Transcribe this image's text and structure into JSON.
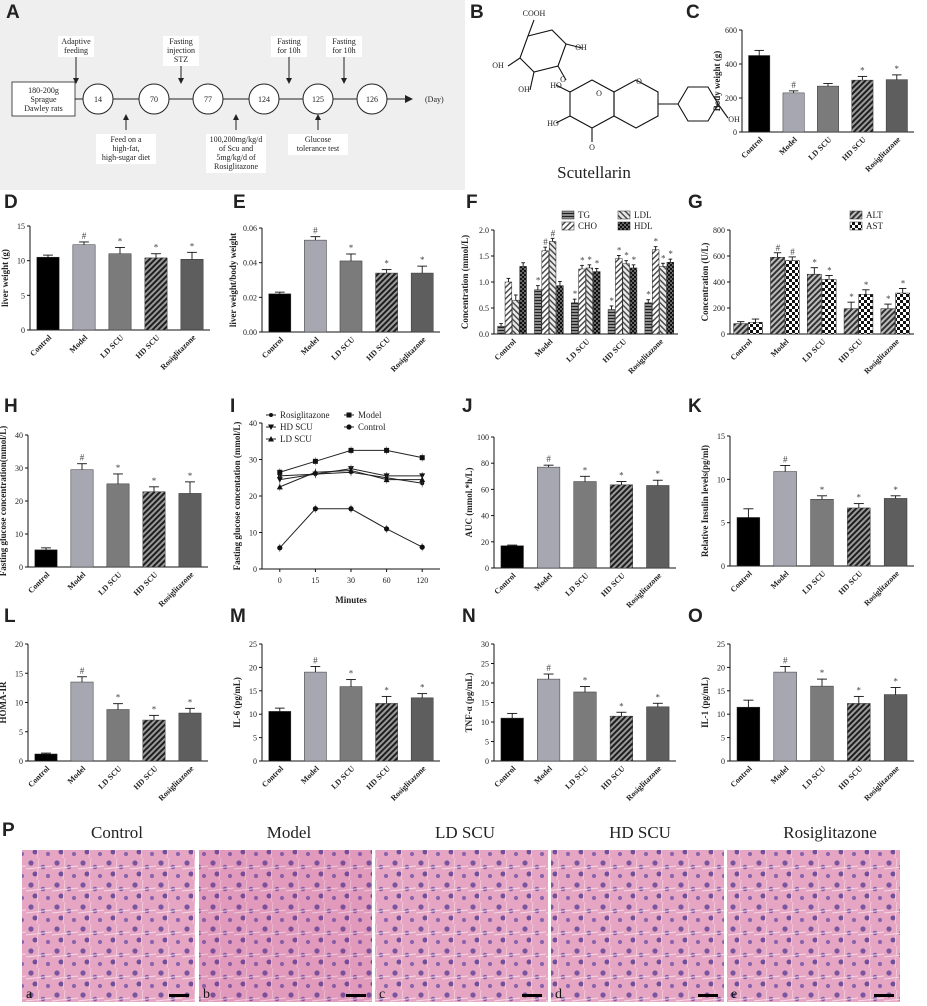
{
  "panel_letters": [
    "A",
    "B",
    "C",
    "D",
    "E",
    "F",
    "G",
    "H",
    "I",
    "J",
    "K",
    "L",
    "M",
    "N",
    "O",
    "P"
  ],
  "timeline": {
    "start_box": "180-200g Sprague Dawley rats",
    "days": [
      "14",
      "70",
      "77",
      "124",
      "125",
      "126"
    ],
    "unit": "(Day)",
    "top_notes": [
      "Adaptive feeding",
      "Fasting injection STZ",
      "Fasting for 10h",
      "Fasting for 10h"
    ],
    "bottom_notes": [
      "Feed on a high-fat, high-sugar diet",
      "100,200mg/kg/d of Scu and 5mg/kg/d of Rosiglitazone",
      "Glucose tolerance test"
    ]
  },
  "molecule": {
    "name": "Scutellarin",
    "atom_labels": [
      "COOH",
      "OH",
      "OH",
      "OH",
      "HO",
      "HO",
      "OH",
      "O",
      "O",
      "O",
      "O"
    ]
  },
  "groups": [
    "Control",
    "Model",
    "LD SCU",
    "HD SCU",
    "Rosiglitazone"
  ],
  "markers": {
    "hash": "#",
    "star": "*"
  },
  "colors": {
    "control": "#000000",
    "model": "#a7a7b1",
    "ld": "#7b7b7b",
    "hd": "#3f3f3f",
    "rosi": "#5e5e5e",
    "bg_panelA": "#efefef"
  },
  "chart_data": [
    {
      "panel": "C",
      "type": "bar",
      "ylabel": "Body weight (g)",
      "categories": [
        "Control",
        "Model",
        "LD SCU",
        "HD SCU",
        "Rosiglitazone"
      ],
      "values": [
        450,
        230,
        270,
        305,
        308
      ],
      "errors": [
        30,
        12,
        15,
        22,
        28
      ],
      "ylim": [
        0,
        600
      ],
      "yticks": [
        0,
        200,
        400,
        600
      ],
      "marks": [
        "",
        "#",
        "",
        "*",
        "*"
      ]
    },
    {
      "panel": "D",
      "type": "bar",
      "ylabel": "liver weight (g)",
      "categories": [
        "Control",
        "Model",
        "LD SCU",
        "HD SCU",
        "Rosiglitazone"
      ],
      "values": [
        10.5,
        12.3,
        11.0,
        10.4,
        10.2
      ],
      "errors": [
        0.3,
        0.4,
        0.9,
        0.6,
        1.0
      ],
      "ylim": [
        0,
        15
      ],
      "yticks": [
        0,
        5,
        10,
        15
      ],
      "marks": [
        "",
        "#",
        "*",
        "*",
        "*"
      ]
    },
    {
      "panel": "E",
      "type": "bar",
      "ylabel": "liver weight/body weight",
      "categories": [
        "Control",
        "Model",
        "LD SCU",
        "HD SCU",
        "Rosiglitazone"
      ],
      "values": [
        0.022,
        0.053,
        0.041,
        0.034,
        0.034
      ],
      "errors": [
        0.001,
        0.002,
        0.004,
        0.002,
        0.004
      ],
      "ylim": [
        0,
        0.06
      ],
      "yticks": [
        0,
        0.02,
        0.04,
        0.06
      ],
      "yticklabels": [
        "0.00",
        "0.02",
        "0.04",
        "0.06"
      ],
      "marks": [
        "",
        "#",
        "*",
        "*",
        "*"
      ]
    },
    {
      "panel": "F",
      "type": "bar",
      "ylabel": "Concentration (mmol/L)",
      "categories": [
        "Control",
        "Model",
        "LD SCU",
        "HD SCU",
        "Rosiglitazone"
      ],
      "ylim": [
        0,
        2.0
      ],
      "yticks": [
        0,
        0.5,
        1.0,
        1.5,
        2.0
      ],
      "yticklabels": [
        "0.0",
        "0.5",
        "1.0",
        "1.5",
        "2.0"
      ],
      "series": [
        {
          "name": "TG",
          "values": [
            0.15,
            0.85,
            0.6,
            0.47,
            0.6
          ],
          "errors": [
            0.05,
            0.08,
            0.07,
            0.07,
            0.06
          ]
        },
        {
          "name": "CHO",
          "values": [
            1.0,
            1.6,
            1.25,
            1.45,
            1.62
          ],
          "errors": [
            0.07,
            0.07,
            0.07,
            0.06,
            0.06
          ]
        },
        {
          "name": "LDL",
          "values": [
            0.65,
            1.78,
            1.27,
            1.35,
            1.3
          ],
          "errors": [
            0.1,
            0.06,
            0.06,
            0.06,
            0.06
          ]
        },
        {
          "name": "HDL",
          "values": [
            1.3,
            0.93,
            1.2,
            1.27,
            1.38
          ],
          "errors": [
            0.07,
            0.08,
            0.06,
            0.06,
            0.06
          ]
        }
      ],
      "marks": [
        [
          "",
          "",
          "",
          ""
        ],
        [
          "*",
          "#",
          "#",
          ""
        ],
        [
          "*",
          "*",
          "*",
          "*"
        ],
        [
          "*",
          "*",
          "*",
          "*"
        ],
        [
          "*",
          "*",
          "*",
          "*"
        ]
      ]
    },
    {
      "panel": "G",
      "type": "bar",
      "ylabel": "Concentration (U/L)",
      "categories": [
        "Control",
        "Model",
        "LD SCU",
        "HD SCU",
        "Rosiglitazone"
      ],
      "ylim": [
        0,
        800
      ],
      "yticks": [
        0,
        200,
        400,
        600,
        800
      ],
      "series": [
        {
          "name": "ALT",
          "values": [
            80,
            590,
            460,
            195,
            195
          ],
          "errors": [
            15,
            35,
            50,
            50,
            35
          ]
        },
        {
          "name": "AST",
          "values": [
            90,
            565,
            420,
            305,
            315
          ],
          "errors": [
            25,
            28,
            30,
            35,
            35
          ]
        }
      ],
      "marks": [
        [
          "",
          ""
        ],
        [
          "#",
          "#"
        ],
        [
          "*",
          "*"
        ],
        [
          "*",
          "*"
        ],
        [
          "*",
          "*"
        ]
      ]
    },
    {
      "panel": "H",
      "type": "bar",
      "ylabel": "Fasting glucose concentration(mmol/L)",
      "categories": [
        "Control",
        "Model",
        "LD SCU",
        "HD SCU",
        "Rosiglitazone"
      ],
      "values": [
        5.2,
        29.5,
        25.2,
        22.8,
        22.3
      ],
      "errors": [
        0.6,
        1.8,
        3.0,
        1.5,
        3.5
      ],
      "ylim": [
        0,
        40
      ],
      "yticks": [
        0,
        10,
        20,
        30,
        40
      ],
      "marks": [
        "",
        "#",
        "*",
        "*",
        "*"
      ]
    },
    {
      "panel": "I",
      "type": "line",
      "ylabel": "Fasting glucose concentation (mmol/L)",
      "xlabel": "Minutes",
      "x": [
        0,
        15,
        30,
        60,
        120
      ],
      "ylim": [
        0,
        40
      ],
      "yticks": [
        0,
        10,
        20,
        30,
        40
      ],
      "series": [
        {
          "name": "Rosiglitazone",
          "values": [
            25.5,
            26,
            26.5,
            25,
            23.5
          ]
        },
        {
          "name": "Model",
          "values": [
            26.5,
            29.5,
            32.5,
            32.5,
            30.5
          ]
        },
        {
          "name": "HD SCU",
          "values": [
            24.5,
            26,
            27.5,
            25.5,
            25.5
          ]
        },
        {
          "name": "Control",
          "values": [
            5.8,
            16.5,
            16.5,
            11,
            6
          ]
        },
        {
          "name": "LD SCU",
          "values": [
            22.5,
            26.5,
            27,
            24.5,
            24.5
          ]
        }
      ]
    },
    {
      "panel": "J",
      "type": "bar",
      "ylabel": "AUC (mmol.*h/L)",
      "categories": [
        "Control",
        "Model",
        "LD SCU",
        "HD SCU",
        "Rosiglitazone"
      ],
      "values": [
        17,
        77,
        66,
        63.5,
        63
      ],
      "errors": [
        0.5,
        1.5,
        4,
        2.5,
        4
      ],
      "ylim": [
        0,
        100
      ],
      "yticks": [
        0,
        20,
        40,
        60,
        80,
        100
      ],
      "marks": [
        "",
        "#",
        "*",
        "*",
        "*"
      ]
    },
    {
      "panel": "K",
      "type": "bar",
      "ylabel": "Relative Insulin levels(pg/ml)",
      "categories": [
        "Control",
        "Model",
        "LD SCU",
        "HD SCU",
        "Rosiglitazone"
      ],
      "values": [
        5.6,
        10.9,
        7.7,
        6.7,
        7.8
      ],
      "errors": [
        1.0,
        0.7,
        0.4,
        0.5,
        0.3
      ],
      "ylim": [
        0,
        15
      ],
      "yticks": [
        0,
        5,
        10,
        15
      ],
      "marks": [
        "",
        "#",
        "*",
        "*",
        "*"
      ]
    },
    {
      "panel": "L",
      "type": "bar",
      "ylabel": "HOMA-IR",
      "categories": [
        "Control",
        "Model",
        "LD SCU",
        "HD SCU",
        "Rosiglitazone"
      ],
      "values": [
        1.2,
        13.5,
        8.8,
        7.0,
        8.2
      ],
      "errors": [
        0.15,
        0.9,
        1.0,
        0.8,
        0.8
      ],
      "ylim": [
        0,
        20
      ],
      "yticks": [
        0,
        5,
        10,
        15,
        20
      ],
      "marks": [
        "",
        "#",
        "*",
        "*",
        "*"
      ]
    },
    {
      "panel": "M",
      "type": "bar",
      "ylabel": "IL-6 (pg/mL)",
      "categories": [
        "Control",
        "Model",
        "LD SCU",
        "HD SCU",
        "Rosiglitazone"
      ],
      "values": [
        10.6,
        19.0,
        15.9,
        12.3,
        13.5
      ],
      "errors": [
        0.7,
        1.2,
        1.5,
        1.5,
        0.9
      ],
      "ylim": [
        0,
        25
      ],
      "yticks": [
        0,
        5,
        10,
        15,
        20,
        25
      ],
      "marks": [
        "",
        "#",
        "*",
        "*",
        "*"
      ]
    },
    {
      "panel": "N",
      "type": "bar",
      "ylabel": "TNF-α (pg/mL)",
      "categories": [
        "Control",
        "Model",
        "LD SCU",
        "HD SCU",
        "Rosiglitazone"
      ],
      "values": [
        11.0,
        21.0,
        17.7,
        11.5,
        13.9
      ],
      "errors": [
        1.2,
        1.3,
        1.4,
        1.0,
        0.9
      ],
      "ylim": [
        0,
        30
      ],
      "yticks": [
        0,
        5,
        10,
        15,
        20,
        25,
        30
      ],
      "marks": [
        "",
        "#",
        "*",
        "*",
        "*"
      ]
    },
    {
      "panel": "O",
      "type": "bar",
      "ylabel": "IL-1 (pg/mL)",
      "categories": [
        "Control",
        "Model",
        "LD SCU",
        "HD SCU",
        "Rosiglitazone"
      ],
      "values": [
        11.5,
        19.0,
        16.0,
        12.3,
        14.2
      ],
      "errors": [
        1.5,
        1.2,
        1.5,
        1.5,
        1.5
      ],
      "ylim": [
        0,
        25
      ],
      "yticks": [
        0,
        5,
        10,
        15,
        20,
        25
      ],
      "marks": [
        "",
        "#",
        "*",
        "*",
        "*"
      ]
    }
  ],
  "histology": {
    "titles": [
      "Control",
      "Model",
      "LD SCU",
      "HD SCU",
      "Rosiglitazone"
    ],
    "sublabels": [
      "a",
      "b",
      "c",
      "d",
      "e"
    ]
  }
}
